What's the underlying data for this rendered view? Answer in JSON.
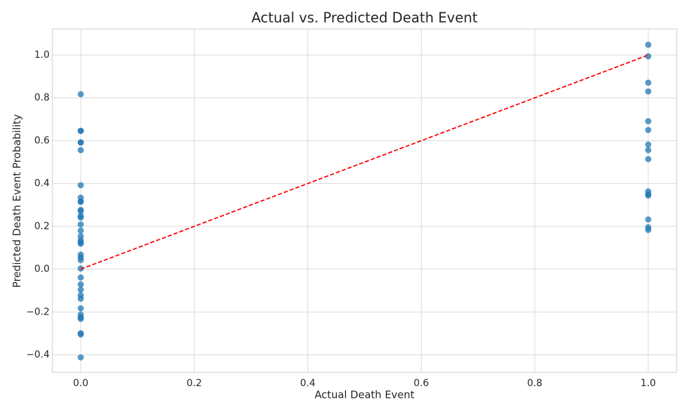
{
  "chart_data": {
    "type": "scatter",
    "title": "Actual vs. Predicted Death Event",
    "x_label": "Actual Death Event",
    "y_label": "Predicted Death Event Probability",
    "series": [
      {
        "color": "#1f77b4",
        "x": [
          0,
          0,
          0,
          0,
          0,
          0,
          0,
          0,
          0,
          0,
          0,
          0,
          0,
          0,
          0,
          0,
          0,
          0,
          0,
          0,
          0,
          0,
          0,
          0,
          0,
          0,
          0,
          0,
          0,
          0,
          0,
          0,
          0,
          0,
          0,
          0,
          1,
          1,
          1,
          1,
          1,
          1,
          1,
          1,
          1,
          1,
          1,
          1,
          1,
          1,
          1
        ],
        "values": [
          0.817,
          0.646,
          0.646,
          0.592,
          0.592,
          0.556,
          0.392,
          0.334,
          0.315,
          0.315,
          0.277,
          0.27,
          0.248,
          0.241,
          0.209,
          0.18,
          0.154,
          0.135,
          0.125,
          0.119,
          0.068,
          0.055,
          0.042,
          0.003,
          -0.039,
          -0.071,
          -0.096,
          -0.122,
          -0.138,
          -0.183,
          -0.212,
          -0.225,
          -0.232,
          -0.299,
          -0.305,
          -0.412,
          1.048,
          0.994,
          0.871,
          0.83,
          0.691,
          0.65,
          0.582,
          0.556,
          0.514,
          0.363,
          0.35,
          0.344,
          0.232,
          0.196,
          0.183
        ]
      }
    ],
    "reference_line": {
      "x": [
        0,
        1
      ],
      "values": [
        0,
        1
      ],
      "color": "#ff0000",
      "dashed": true
    },
    "xlim": [
      -0.05,
      1.05
    ],
    "ylim": [
      -0.482,
      1.122
    ],
    "xticks": [
      {
        "value": 0,
        "label": "0.0"
      },
      {
        "value": 0.2,
        "label": "0.2"
      },
      {
        "value": 0.4,
        "label": "0.4"
      },
      {
        "value": 0.6,
        "label": "0.6"
      },
      {
        "value": 0.8,
        "label": "0.8"
      },
      {
        "value": 1,
        "label": "1.0"
      }
    ],
    "yticks": [
      {
        "value": -0.4,
        "label": "−0.4"
      },
      {
        "value": -0.2,
        "label": "−0.2"
      },
      {
        "value": 0,
        "label": "0.0"
      },
      {
        "value": 0.2,
        "label": "0.2"
      },
      {
        "value": 0.4,
        "label": "0.4"
      },
      {
        "value": 0.6,
        "label": "0.6"
      },
      {
        "value": 0.8,
        "label": "0.8"
      },
      {
        "value": 1,
        "label": "1.0"
      }
    ],
    "grid": true
  }
}
